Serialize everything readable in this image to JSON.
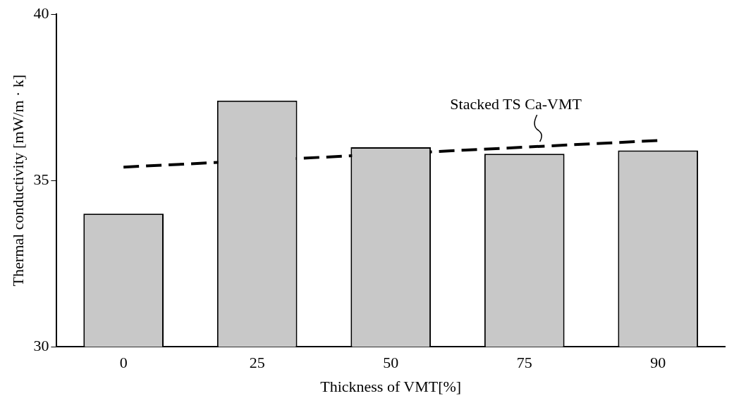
{
  "chart_data": {
    "type": "bar",
    "xlabel": "Thickness of VMT[%]",
    "ylabel": "Thermal conductivity [mW/m · k]",
    "categories": [
      "0",
      "25",
      "50",
      "75",
      "90"
    ],
    "series": [
      {
        "color": "#c8c8c8",
        "values": [
          34.0,
          37.4,
          36.0,
          35.8,
          35.9
        ]
      },
      {
        "type": "line",
        "name": "Stacked TS Ca-VMT",
        "color": "#000000",
        "line_style": "dashed",
        "marker": "none",
        "values": [
          35.4,
          null,
          null,
          null,
          36.2
        ]
      }
    ],
    "ylim": [
      30,
      40
    ],
    "yticks": [
      30,
      35,
      40
    ],
    "grid": false,
    "legend": false
  }
}
